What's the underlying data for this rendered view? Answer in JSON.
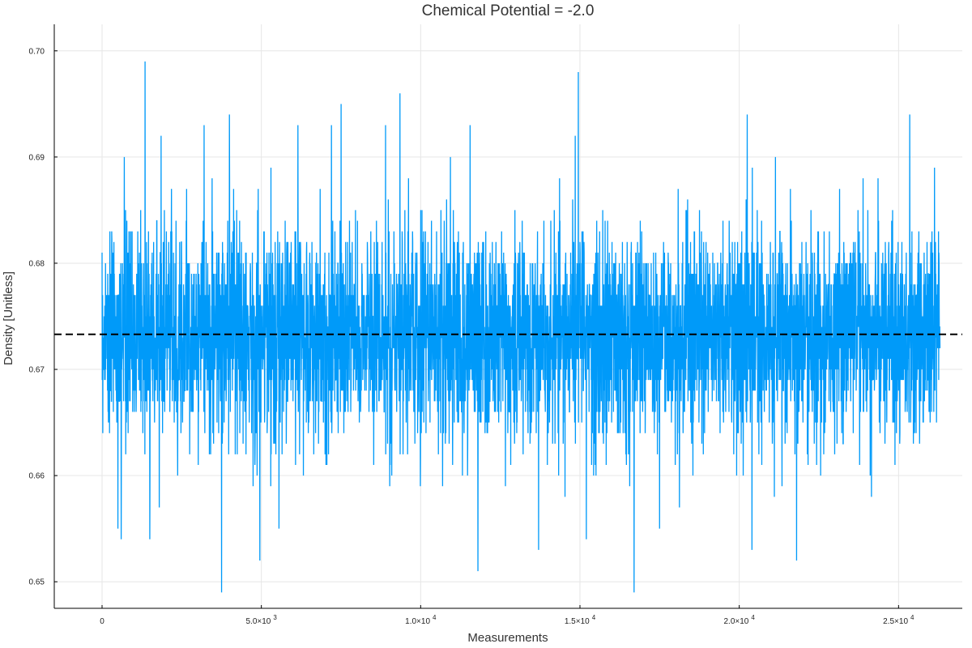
{
  "chart_data": {
    "type": "line",
    "title": "Chemical Potential = -2.0",
    "xlabel": "Measurements",
    "ylabel": "Density [Unitless]",
    "xlim": [
      -1500,
      27000
    ],
    "ylim": [
      0.6475,
      0.7025
    ],
    "grid": true,
    "legend": "none",
    "x_ticks": [
      {
        "value": 0,
        "mantissa": "0",
        "exponent": ""
      },
      {
        "value": 5000,
        "mantissa": "5.0×10",
        "exponent": "3"
      },
      {
        "value": 10000,
        "mantissa": "1.0×10",
        "exponent": "4"
      },
      {
        "value": 15000,
        "mantissa": "1.5×10",
        "exponent": "4"
      },
      {
        "value": 20000,
        "mantissa": "2.0×10",
        "exponent": "4"
      },
      {
        "value": 25000,
        "mantissa": "2.5×10",
        "exponent": "4"
      }
    ],
    "y_ticks": [
      {
        "value": 0.65,
        "label": "0.65"
      },
      {
        "value": 0.66,
        "label": "0.66"
      },
      {
        "value": 0.67,
        "label": "0.67"
      },
      {
        "value": 0.68,
        "label": "0.68"
      },
      {
        "value": 0.69,
        "label": "0.69"
      },
      {
        "value": 0.7,
        "label": "0.70"
      }
    ],
    "series": [
      {
        "color": "#009af9",
        "n_points": 26300,
        "x_range": [
          0,
          26300
        ],
        "mean": 0.6733,
        "std": 0.005,
        "value_step": 0.001,
        "min": 0.649,
        "max": 0.699,
        "extreme_points": [
          {
            "x": 1350,
            "y": 0.699
          },
          {
            "x": 14950,
            "y": 0.698
          },
          {
            "x": 9350,
            "y": 0.696
          },
          {
            "x": 7500,
            "y": 0.695
          },
          {
            "x": 4000,
            "y": 0.694
          },
          {
            "x": 20250,
            "y": 0.694
          },
          {
            "x": 25350,
            "y": 0.694
          },
          {
            "x": 3200,
            "y": 0.693
          },
          {
            "x": 6150,
            "y": 0.693
          },
          {
            "x": 7200,
            "y": 0.693
          },
          {
            "x": 8900,
            "y": 0.693
          },
          {
            "x": 11550,
            "y": 0.693
          },
          {
            "x": 14850,
            "y": 0.692
          },
          {
            "x": 1850,
            "y": 0.692
          },
          {
            "x": 3750,
            "y": 0.649
          },
          {
            "x": 16700,
            "y": 0.649
          },
          {
            "x": 11800,
            "y": 0.651
          },
          {
            "x": 4950,
            "y": 0.652
          },
          {
            "x": 21800,
            "y": 0.652
          },
          {
            "x": 13700,
            "y": 0.653
          },
          {
            "x": 20400,
            "y": 0.653
          },
          {
            "x": 600,
            "y": 0.654
          },
          {
            "x": 1500,
            "y": 0.654
          },
          {
            "x": 15200,
            "y": 0.654
          },
          {
            "x": 5550,
            "y": 0.655
          },
          {
            "x": 500,
            "y": 0.655
          },
          {
            "x": 17500,
            "y": 0.655
          }
        ]
      },
      {
        "color": "#000000",
        "line_style": "dashed",
        "x_range": [
          -1500,
          27000
        ],
        "y": 0.6733
      }
    ]
  }
}
